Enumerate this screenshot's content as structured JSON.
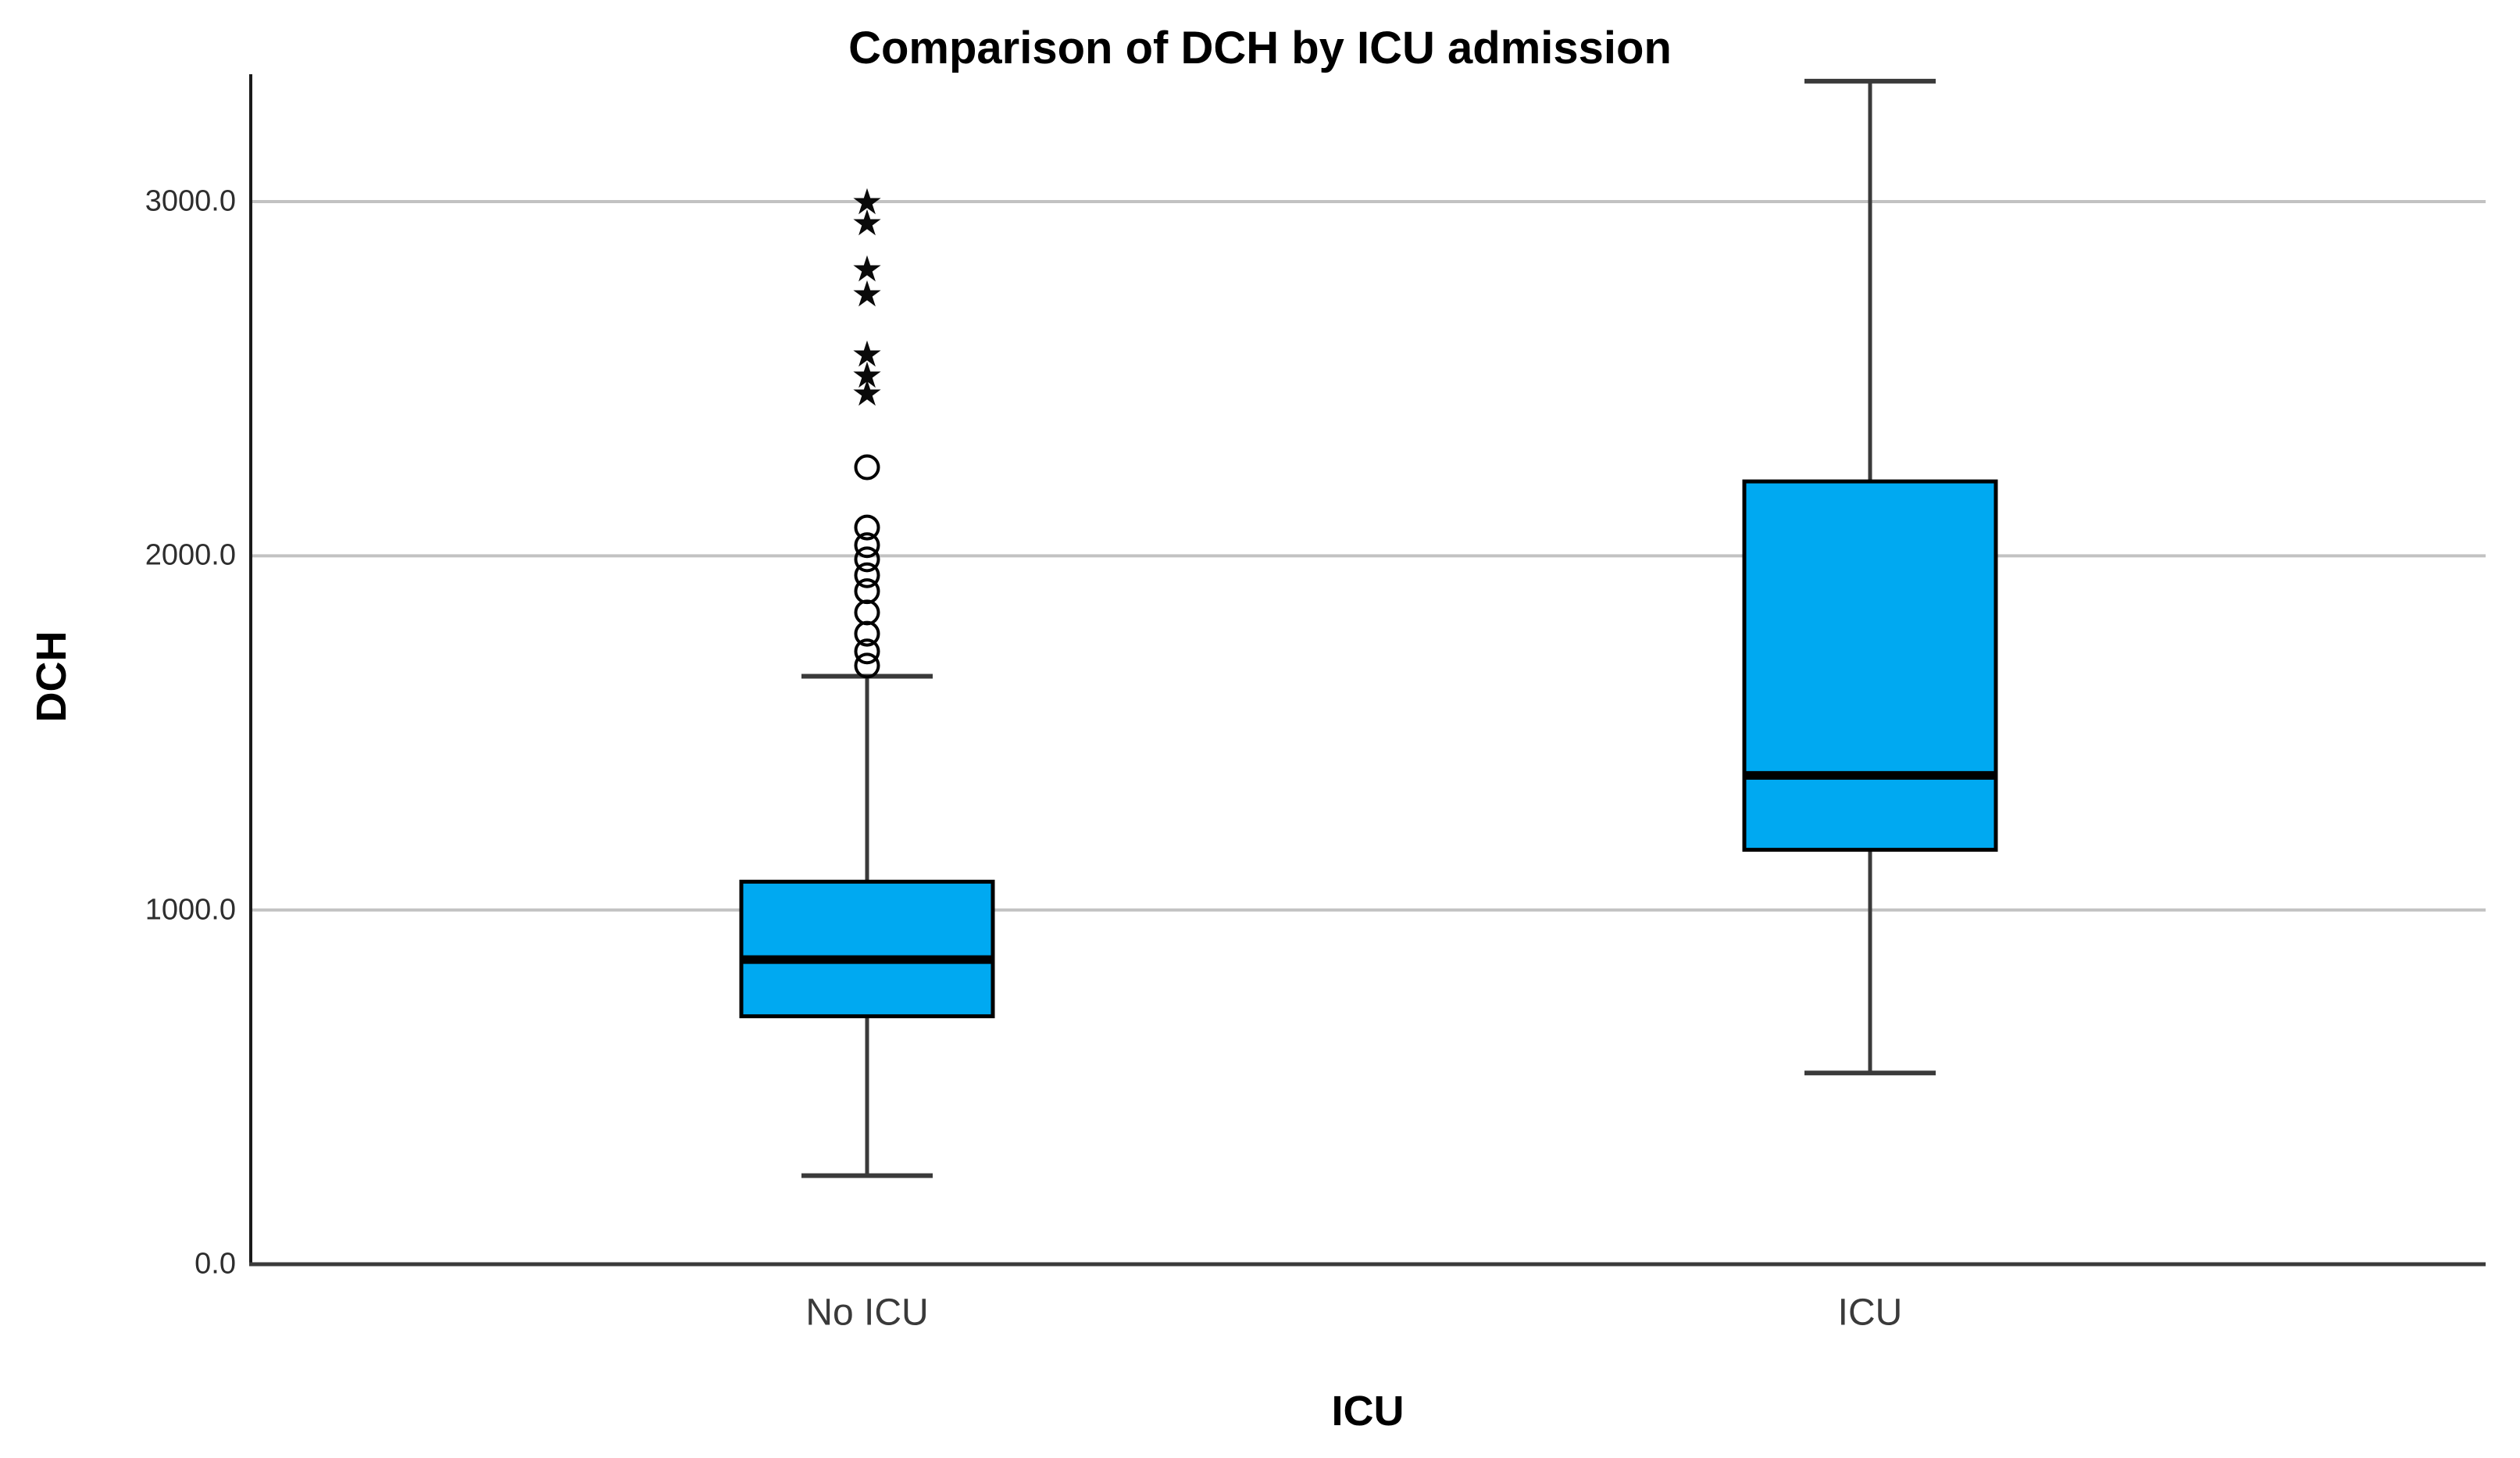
{
  "chart_data": {
    "type": "bar",
    "subtype": "boxplot",
    "title": "Comparison of DCH by ICU admission",
    "xlabel": "ICU",
    "ylabel": "DCH",
    "ylim": [
      0,
      3360
    ],
    "grid": "horizontal gridlines at 1000, 2000, 3000",
    "legend": "none",
    "yticks": [
      {
        "value": 0,
        "label": "0.0"
      },
      {
        "value": 1000,
        "label": "1000.0"
      },
      {
        "value": 2000,
        "label": "2000.0"
      },
      {
        "value": 3000,
        "label": "3000.0"
      }
    ],
    "categories": [
      "No ICU",
      "ICU"
    ],
    "series": [
      {
        "category": "No ICU",
        "whisker_low": 250,
        "q1": 700,
        "median": 860,
        "q3": 1080,
        "whisker_high": 1660,
        "outliers_mild_circles": [
          1690,
          1730,
          1780,
          1840,
          1900,
          1945,
          1990,
          2030,
          2080,
          2250
        ],
        "outliers_extreme_stars": [
          2460,
          2510,
          2570,
          2740,
          2810,
          2940,
          3000
        ]
      },
      {
        "category": "ICU",
        "whisker_low": 540,
        "q1": 1170,
        "median": 1380,
        "q3": 2210,
        "whisker_high": 3340,
        "outliers_mild_circles": [],
        "outliers_extreme_stars": []
      }
    ],
    "colors": {
      "box_fill": "#00A9F1",
      "box_border": "#000000",
      "median_line": "#000000",
      "whisker": "#3a3a3a",
      "gridline": "#c2c2c2",
      "y_axis": "#1a1a1a",
      "baseline": "#3a3a3a",
      "tick_text": "#2e2e2e",
      "category_text": "#3a3a3a",
      "title_text": "#000000",
      "background": "#ffffff"
    }
  }
}
